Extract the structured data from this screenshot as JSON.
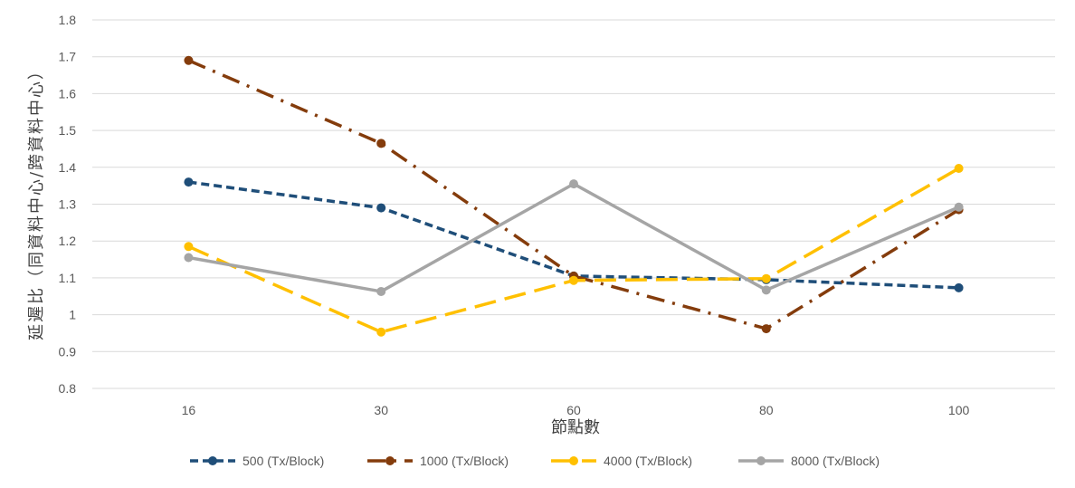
{
  "chart_data": {
    "type": "line",
    "title": "",
    "xlabel": "節點數",
    "ylabel": "延遲比（同資料中心/跨資料中心）",
    "categories": [
      "16",
      "30",
      "60",
      "80",
      "100"
    ],
    "ylim": [
      0.8,
      1.8
    ],
    "yticks": [
      "0.8",
      "0.9",
      "1",
      "1.1",
      "1.2",
      "1.3",
      "1.4",
      "1.5",
      "1.6",
      "1.7",
      "1.8"
    ],
    "grid": "horizontal",
    "legend_position": "bottom",
    "series": [
      {
        "name": "500 (Tx/Block)",
        "values": [
          1.36,
          1.29,
          1.105,
          1.095,
          1.073
        ],
        "color": "#1F4E79",
        "dash": "short-dash"
      },
      {
        "name": "1000 (Tx/Block)",
        "values": [
          1.69,
          1.465,
          1.105,
          0.962,
          1.285
        ],
        "color": "#843C0C",
        "dash": "long-dash-dot"
      },
      {
        "name": "4000 (Tx/Block)",
        "values": [
          1.185,
          0.953,
          1.093,
          1.098,
          1.397
        ],
        "color": "#FFC000",
        "dash": "long-dash"
      },
      {
        "name": "8000 (Tx/Block)",
        "values": [
          1.155,
          1.063,
          1.355,
          1.067,
          1.292
        ],
        "color": "#A5A5A5",
        "dash": "solid"
      }
    ]
  }
}
